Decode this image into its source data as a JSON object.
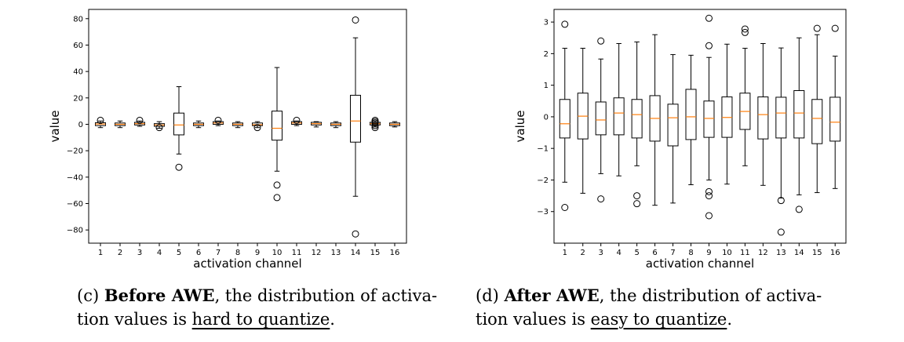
{
  "chart_data": [
    {
      "type": "boxplot",
      "xlabel": "activation channel",
      "ylabel": "value",
      "ylim": [
        -90,
        87
      ],
      "yticks": [
        -80,
        -60,
        -40,
        -20,
        0,
        20,
        40,
        60,
        80
      ],
      "categories": [
        "1",
        "2",
        "3",
        "4",
        "5",
        "6",
        "7",
        "8",
        "9",
        "10",
        "11",
        "12",
        "13",
        "14",
        "15",
        "16"
      ],
      "boxes": [
        {
          "q1": -1,
          "median": 0.2,
          "q3": 1.2,
          "whislo": -2.5,
          "whishi": 2.5,
          "fliers": [
            3
          ]
        },
        {
          "q1": -1,
          "median": 0.0,
          "q3": 1,
          "whislo": -2.5,
          "whishi": 2.5,
          "fliers": []
        },
        {
          "q1": -0.5,
          "median": 0.5,
          "q3": 1.5,
          "whislo": -1.5,
          "whishi": 2.5,
          "fliers": [
            3
          ]
        },
        {
          "q1": -1.5,
          "median": -0.5,
          "q3": 0.5,
          "whislo": -3,
          "whishi": 2,
          "fliers": [
            -2.5
          ]
        },
        {
          "q1": -8,
          "median": -0.5,
          "q3": 8.5,
          "whislo": -22.5,
          "whishi": 28.5,
          "fliers": [
            -32.5
          ]
        },
        {
          "q1": -1,
          "median": 0.0,
          "q3": 1,
          "whislo": -2.5,
          "whishi": 2.5,
          "fliers": []
        },
        {
          "q1": 0,
          "median": 1,
          "q3": 2,
          "whislo": -1,
          "whishi": 2.5,
          "fliers": [
            3
          ]
        },
        {
          "q1": -1,
          "median": 0,
          "q3": 1,
          "whislo": -2.5,
          "whishi": 2,
          "fliers": []
        },
        {
          "q1": -1,
          "median": -0.3,
          "q3": 1,
          "whislo": -2.5,
          "whishi": 2,
          "fliers": [
            -2.5
          ]
        },
        {
          "q1": -12,
          "median": -3,
          "q3": 10,
          "whislo": -35.5,
          "whishi": 43,
          "fliers": [
            -46,
            -55.5
          ]
        },
        {
          "q1": 0,
          "median": 1,
          "q3": 2,
          "whislo": -1,
          "whishi": 2.5,
          "fliers": [
            3
          ]
        },
        {
          "q1": -0.5,
          "median": 0.5,
          "q3": 1.5,
          "whislo": -2,
          "whishi": 2,
          "fliers": []
        },
        {
          "q1": -1,
          "median": 0,
          "q3": 1,
          "whislo": -2.5,
          "whishi": 2,
          "fliers": []
        },
        {
          "q1": -13.5,
          "median": 2.5,
          "q3": 22,
          "whislo": -54.5,
          "whishi": 65.5,
          "fliers": [
            79,
            -83
          ]
        },
        {
          "q1": -0.5,
          "median": 0.5,
          "q3": 1.5,
          "whislo": -2,
          "whishi": 2.5,
          "fliers": [
            3,
            2,
            1,
            -1,
            -2.5
          ]
        },
        {
          "q1": -1,
          "median": 0,
          "q3": 1,
          "whislo": -2,
          "whishi": 2,
          "fliers": []
        }
      ]
    },
    {
      "type": "boxplot",
      "xlabel": "activation channel",
      "ylabel": "value",
      "ylim": [
        -4,
        3.4
      ],
      "yticks": [
        -3,
        -2,
        -1,
        0,
        1,
        2,
        3
      ],
      "categories": [
        "1",
        "2",
        "3",
        "4",
        "5",
        "6",
        "7",
        "8",
        "9",
        "10",
        "11",
        "12",
        "13",
        "14",
        "15",
        "16"
      ],
      "boxes": [
        {
          "q1": -0.67,
          "median": -0.22,
          "q3": 0.55,
          "whislo": -2.07,
          "whishi": 2.17,
          "fliers": [
            2.93,
            -2.87
          ]
        },
        {
          "q1": -0.7,
          "median": 0.02,
          "q3": 0.75,
          "whislo": -2.42,
          "whishi": 2.17,
          "fliers": []
        },
        {
          "q1": -0.57,
          "median": -0.1,
          "q3": 0.47,
          "whislo": -1.8,
          "whishi": 1.83,
          "fliers": [
            2.4,
            -2.6
          ]
        },
        {
          "q1": -0.57,
          "median": 0.12,
          "q3": 0.6,
          "whislo": -1.87,
          "whishi": 2.32,
          "fliers": []
        },
        {
          "q1": -0.67,
          "median": 0.07,
          "q3": 0.55,
          "whislo": -1.55,
          "whishi": 2.37,
          "fliers": [
            -2.5,
            -2.75
          ]
        },
        {
          "q1": -0.77,
          "median": -0.05,
          "q3": 0.67,
          "whislo": -2.8,
          "whishi": 2.6,
          "fliers": []
        },
        {
          "q1": -0.92,
          "median": -0.03,
          "q3": 0.4,
          "whislo": -2.73,
          "whishi": 1.97,
          "fliers": []
        },
        {
          "q1": -0.72,
          "median": 0.0,
          "q3": 0.87,
          "whislo": -2.15,
          "whishi": 1.95,
          "fliers": []
        },
        {
          "q1": -0.65,
          "median": -0.05,
          "q3": 0.5,
          "whislo": -2.0,
          "whishi": 1.88,
          "fliers": [
            3.12,
            2.25,
            -2.37,
            -2.5,
            -3.13
          ]
        },
        {
          "q1": -0.65,
          "median": -0.02,
          "q3": 0.63,
          "whislo": -2.13,
          "whishi": 2.3,
          "fliers": []
        },
        {
          "q1": -0.4,
          "median": 0.17,
          "q3": 0.75,
          "whislo": -1.55,
          "whishi": 2.17,
          "fliers": [
            2.78,
            2.67
          ]
        },
        {
          "q1": -0.7,
          "median": 0.07,
          "q3": 0.63,
          "whislo": -2.17,
          "whishi": 2.32,
          "fliers": []
        },
        {
          "q1": -0.67,
          "median": 0.12,
          "q3": 0.62,
          "whislo": -2.57,
          "whishi": 2.18,
          "fliers": [
            -2.65,
            -3.65
          ]
        },
        {
          "q1": -0.67,
          "median": 0.12,
          "q3": 0.83,
          "whislo": -2.47,
          "whishi": 2.5,
          "fliers": [
            -2.93
          ]
        },
        {
          "q1": -0.85,
          "median": -0.05,
          "q3": 0.55,
          "whislo": -2.4,
          "whishi": 2.6,
          "fliers": [
            2.8
          ]
        },
        {
          "q1": -0.77,
          "median": -0.17,
          "q3": 0.62,
          "whislo": -2.27,
          "whishi": 1.92,
          "fliers": [
            2.8
          ]
        }
      ]
    }
  ],
  "captions": [
    {
      "prefix": "(c) ",
      "bold": "Before AWE",
      "middle": ", the distribution of activa-",
      "line2_before": "tion values is ",
      "underline": "hard to quantize",
      "line2_after": "."
    },
    {
      "prefix": "(d) ",
      "bold": "After AWE",
      "middle": ", the distribution of activa-",
      "line2_before": "tion values is ",
      "underline": "easy to quantize",
      "line2_after": "."
    }
  ],
  "colors": {
    "median": "#ff7f0e",
    "box": "#000000"
  }
}
